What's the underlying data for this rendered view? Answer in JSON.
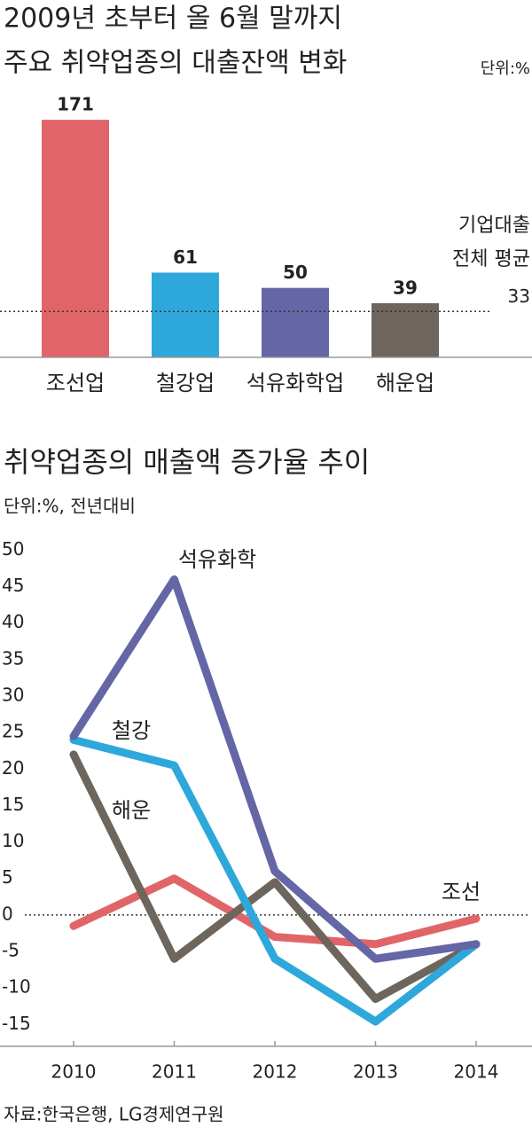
{
  "chart_data": [
    {
      "type": "bar",
      "title": [
        "2009년 초부터 올 6월 말까지",
        "주요 취약업종의 대출잔액 변화"
      ],
      "unit": "단위:%",
      "categories": [
        "조선업",
        "철강업",
        "석유화학업",
        "해운업"
      ],
      "values": [
        171,
        61,
        50,
        39
      ],
      "colors": [
        "#e06568",
        "#2ea8da",
        "#6466a6",
        "#6e655d"
      ],
      "ylim": [
        0,
        180
      ],
      "reference": {
        "label": [
          "기업대출",
          "전체 평균"
        ],
        "value": 33
      }
    },
    {
      "type": "line",
      "title": "취약업종의 매출액 증가율 추이",
      "unit": "단위:%, 전년대비",
      "x": [
        2010,
        2011,
        2012,
        2013,
        2014
      ],
      "ylim": [
        -18,
        52
      ],
      "yticks": [
        50,
        45,
        40,
        35,
        30,
        25,
        20,
        15,
        10,
        5,
        0,
        -5,
        -10,
        -15
      ],
      "series": [
        {
          "name": "조선",
          "color": "#e06568",
          "values": [
            -1.5,
            5,
            -3,
            -4,
            -0.5
          ]
        },
        {
          "name": "해운",
          "color": "#6e655d",
          "values": [
            22,
            -6,
            4.5,
            -11.5,
            -4
          ]
        },
        {
          "name": "철강",
          "color": "#2ea8da",
          "values": [
            24,
            20.5,
            -6,
            -14.6,
            -4
          ]
        },
        {
          "name": "석유화학",
          "color": "#6466a6",
          "values": [
            24.5,
            46,
            6,
            -6,
            -4
          ]
        }
      ]
    }
  ],
  "source": "자료:한국은행, LG경제연구원"
}
